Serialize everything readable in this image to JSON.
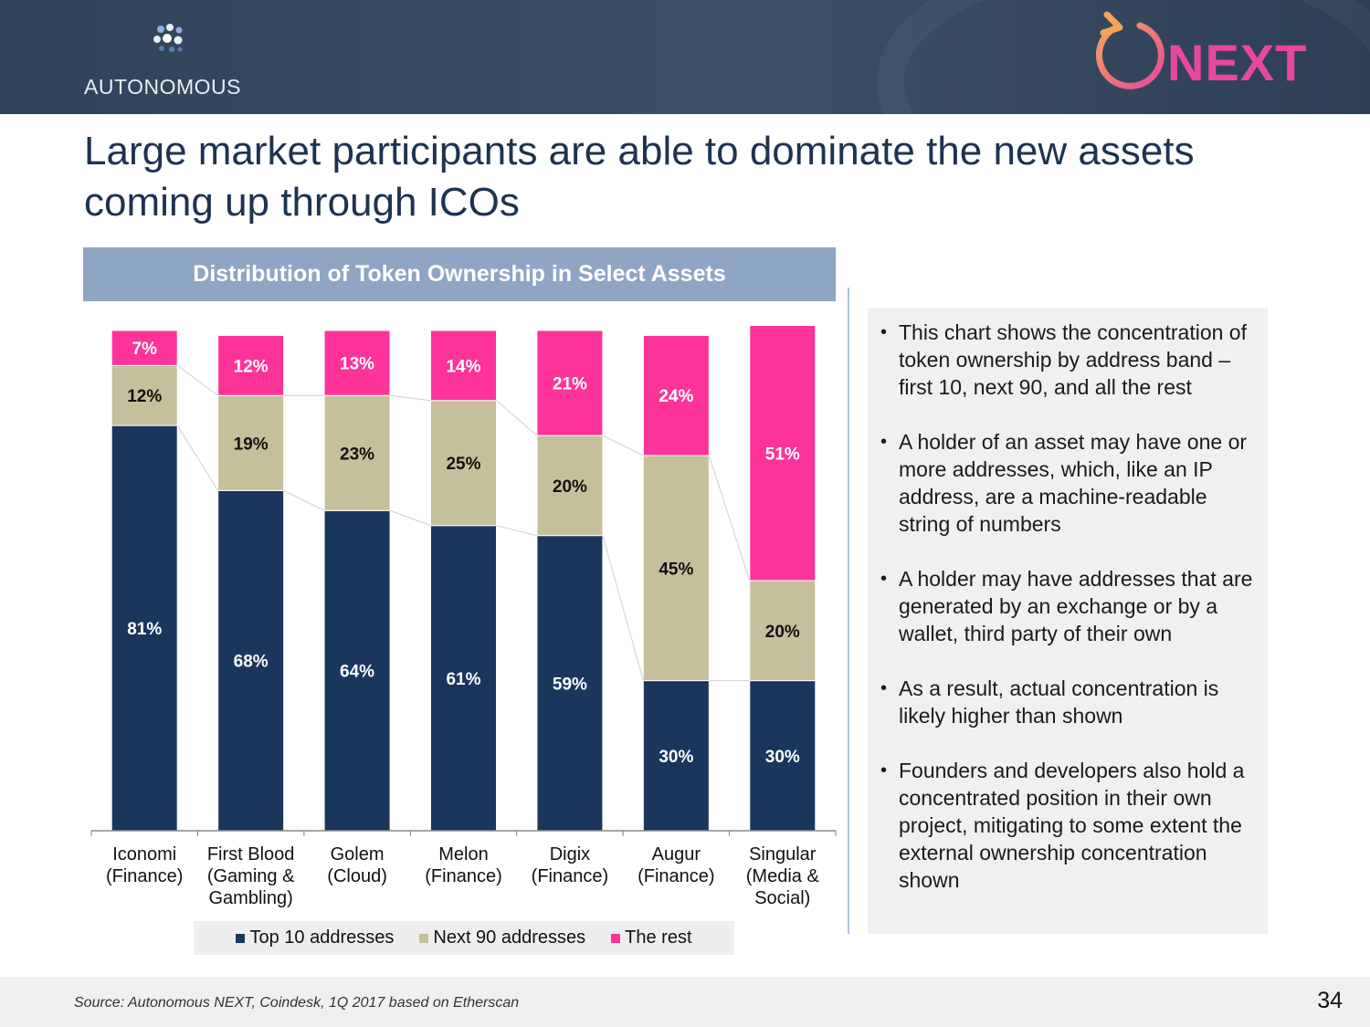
{
  "header": {
    "left_logo_text": "AUTONOMOUS",
    "right_logo_text": "NEXT",
    "left_logo_icon": "dots-cluster-icon",
    "right_logo_icon": "circular-arrow-icon"
  },
  "title": "Large market participants are able to dominate the new assets coming up through ICOs",
  "chart_data": {
    "type": "bar",
    "stacked": true,
    "title": "Distribution of Token Ownership in Select Assets",
    "xlabel": "",
    "ylabel": "",
    "ylim": [
      0,
      100
    ],
    "grid": false,
    "categories": [
      "Iconomi (Finance)",
      "First Blood (Gaming & Gambling)",
      "Golem (Cloud)",
      "Melon (Finance)",
      "Digix (Finance)",
      "Augur (Finance)",
      "Singular (Media & Social)"
    ],
    "category_lines": [
      [
        "Iconomi",
        "(Finance)"
      ],
      [
        "First Blood",
        "(Gaming &",
        "Gambling)"
      ],
      [
        "Golem",
        "(Cloud)"
      ],
      [
        "Melon",
        "(Finance)"
      ],
      [
        "Digix",
        "(Finance)"
      ],
      [
        "Augur",
        "(Finance)"
      ],
      [
        "Singular",
        "(Media &",
        "Social)"
      ]
    ],
    "series": [
      {
        "name": "Top 10 addresses",
        "color": "#1a365d",
        "label_color": "#ffffff",
        "values": [
          81,
          68,
          64,
          61,
          59,
          30,
          30
        ]
      },
      {
        "name": "Next 90 addresses",
        "color": "#c6bf9c",
        "label_color": "#111111",
        "values": [
          12,
          19,
          23,
          25,
          20,
          45,
          20
        ]
      },
      {
        "name": "The rest",
        "color": "#fe3399",
        "label_color": "#ffffff",
        "values": [
          7,
          12,
          13,
          14,
          21,
          24,
          51
        ]
      }
    ],
    "legend_position": "bottom"
  },
  "notes": [
    "This chart shows the concentration of token ownership by address band – first 10, next 90, and all the rest",
    " A holder of an asset may have one or more addresses, which, like an IP address, are a machine-readable string of numbers",
    "A holder may have addresses that are generated by an exchange or by a wallet, third party of their own",
    "As a result, actual concentration is likely higher than shown",
    "Founders and developers also hold a concentrated position in their own project, mitigating to some extent the external ownership concentration shown"
  ],
  "footer": {
    "source": "Source: Autonomous NEXT, Coindesk, 1Q 2017 based on Etherscan",
    "page_number": "34"
  }
}
